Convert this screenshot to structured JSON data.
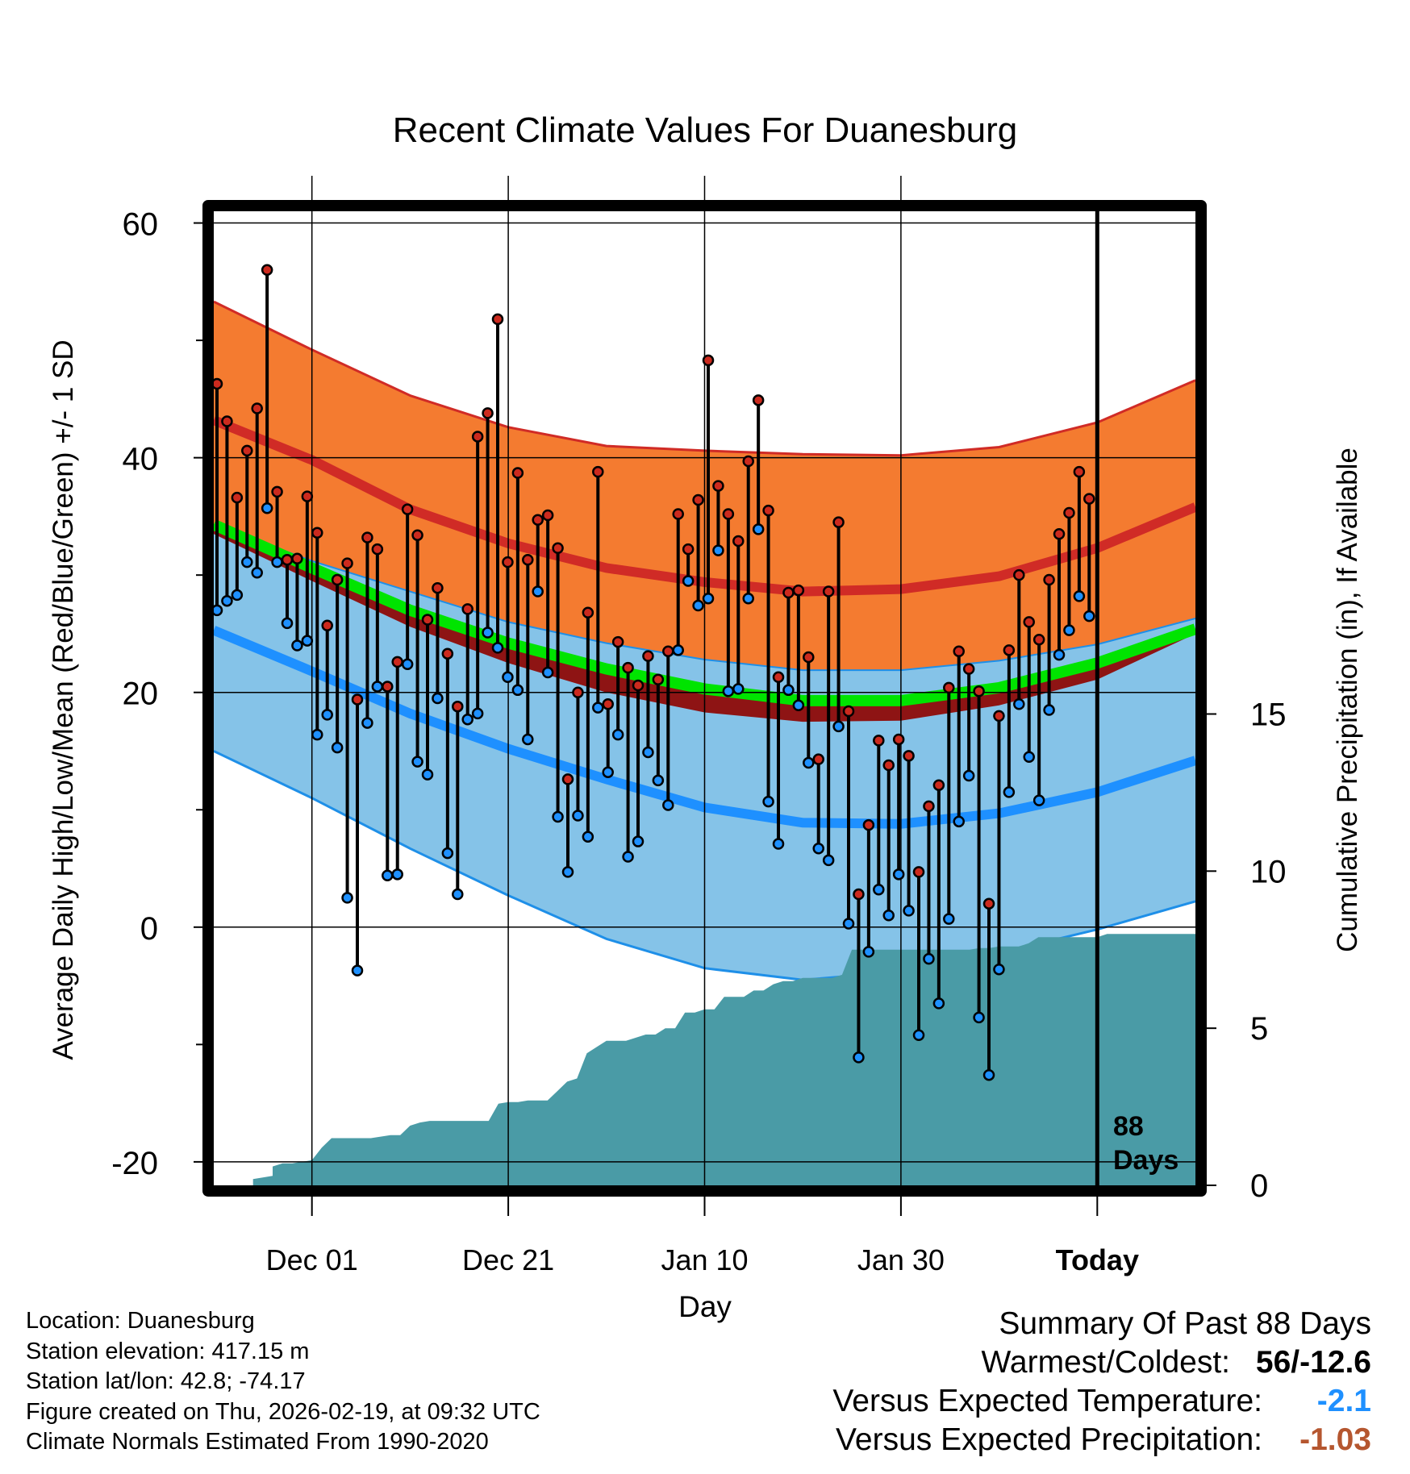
{
  "chart_data": {
    "type": "line",
    "title": "Recent Climate Values For Duanesburg",
    "xlabel": "Day",
    "ylabel": "Average Daily High/Low/Mean (Red/Blue/Green) +/- 1 SD",
    "y2label": "Cumulative Precipitation (in), If Available",
    "ylim": [
      -22,
      61
    ],
    "y_ticks": [
      -20,
      0,
      20,
      40,
      60
    ],
    "y_tick_labels": [
      "-20",
      "0",
      "20",
      "40",
      "60"
    ],
    "y2lim": [
      0,
      31
    ],
    "y2_ticks": [
      0,
      5,
      10,
      15
    ],
    "y2_tick_labels": [
      "0",
      "5",
      "10",
      "15"
    ],
    "xlim": [
      0,
      100
    ],
    "x_ticks": [
      10,
      30,
      50,
      70,
      90
    ],
    "x_tick_labels": [
      "Dec 01",
      "Dec 21",
      "Jan 10",
      "Jan 30",
      "Today"
    ],
    "today_index": 90,
    "days_label": [
      "88",
      "Days"
    ],
    "normals": {
      "x": [
        0,
        10,
        20,
        30,
        40,
        50,
        60,
        70,
        80,
        90,
        100
      ],
      "high_plus_sd": [
        53.3,
        49.2,
        45.3,
        42.6,
        41.0,
        40.6,
        40.3,
        40.2,
        40.9,
        43.0,
        46.6
      ],
      "high_mean": [
        43.2,
        39.8,
        35.6,
        32.7,
        30.6,
        29.4,
        28.6,
        28.8,
        29.9,
        32.3,
        35.8
      ],
      "high_minus_sd": [
        33.5,
        29.5,
        25.6,
        22.5,
        20.0,
        18.3,
        17.5,
        17.6,
        18.9,
        21.1,
        25.0
      ],
      "mean": [
        34.3,
        30.6,
        27.0,
        24.2,
        22.0,
        20.3,
        19.3,
        19.3,
        20.4,
        22.5,
        25.4
      ],
      "mean_sd_upper": [
        34.3,
        31.2,
        28.6,
        26.0,
        24.2,
        22.8,
        21.9,
        21.9,
        22.7,
        24.1,
        26.3
      ],
      "low_mean": [
        25.3,
        21.8,
        18.2,
        15.2,
        12.6,
        10.2,
        8.9,
        8.8,
        9.7,
        11.5,
        14.2
      ],
      "low_minus_sd": [
        15.0,
        11.0,
        6.7,
        2.7,
        -1.0,
        -3.5,
        -4.5,
        -3.8,
        -2.2,
        -0.2,
        2.2
      ]
    },
    "series": [
      {
        "name": "High",
        "color": "#cc2a1e",
        "values": [
          46.3,
          43.1,
          36.6,
          40.6,
          44.2,
          56.0,
          37.1,
          31.3,
          31.4,
          36.7,
          33.6,
          25.7,
          29.6,
          31.0,
          19.4,
          33.2,
          32.2,
          20.5,
          22.6,
          35.6,
          33.4,
          26.2,
          28.9,
          23.3,
          18.8,
          27.1,
          41.8,
          43.8,
          51.8,
          31.1,
          38.7,
          31.3,
          34.7,
          35.1,
          32.3,
          12.6,
          20.0,
          26.8,
          38.8,
          19.0,
          24.3,
          22.1,
          20.6,
          23.1,
          21.1,
          23.5,
          35.2,
          32.2,
          36.4,
          48.3,
          37.6,
          35.2,
          32.9,
          39.7,
          44.9,
          35.5,
          21.3,
          28.5,
          28.7,
          23.0,
          14.3,
          28.6,
          34.5,
          18.4,
          2.8,
          8.7,
          15.9,
          13.8,
          16.0,
          14.6,
          4.7,
          10.3,
          12.1,
          20.4,
          23.5,
          22.0,
          20.1,
          2.0,
          18.0,
          23.6,
          30.0,
          26.0,
          24.5,
          29.6,
          33.5,
          35.3,
          38.8,
          36.5
        ]
      },
      {
        "name": "Low",
        "color": "#1e90ff",
        "values": [
          27.0,
          27.8,
          28.3,
          31.1,
          30.2,
          35.7,
          31.1,
          25.9,
          24.0,
          24.4,
          16.4,
          18.1,
          15.3,
          2.5,
          -3.7,
          17.4,
          20.5,
          4.4,
          4.5,
          22.4,
          14.1,
          13.0,
          19.5,
          6.3,
          2.8,
          17.7,
          18.2,
          25.1,
          23.8,
          21.3,
          20.2,
          16.0,
          28.6,
          21.7,
          9.4,
          4.7,
          9.5,
          7.7,
          18.7,
          13.2,
          16.4,
          6.0,
          7.3,
          14.9,
          12.5,
          10.4,
          23.6,
          29.5,
          27.4,
          28.0,
          32.1,
          20.1,
          20.3,
          28.0,
          33.9,
          10.7,
          7.1,
          20.2,
          18.9,
          14.0,
          6.7,
          5.7,
          17.1,
          0.3,
          -11.1,
          -2.1,
          3.2,
          1.0,
          4.5,
          1.4,
          -9.2,
          -2.7,
          -6.5,
          0.7,
          9.0,
          12.9,
          -7.7,
          -12.6,
          -3.6,
          11.5,
          19.0,
          14.5,
          10.8,
          18.5,
          23.2,
          25.3,
          28.2,
          26.5
        ]
      }
    ],
    "precip": {
      "x": [
        0,
        4,
        4,
        5,
        6,
        6,
        7,
        8,
        8,
        9,
        10,
        10,
        11,
        12,
        13,
        14,
        15,
        16,
        17,
        18,
        19,
        20,
        21,
        22,
        23,
        24,
        25,
        26,
        27,
        28,
        29,
        30,
        31,
        32,
        33,
        34,
        35,
        36,
        37,
        38,
        39,
        40,
        41,
        42,
        43,
        44,
        45,
        46,
        47,
        48,
        49,
        50,
        51,
        52,
        53,
        54,
        55,
        56,
        57,
        58,
        59,
        60,
        61,
        62,
        63,
        64,
        65,
        66,
        67,
        68,
        69,
        70,
        71,
        72,
        73,
        74,
        75,
        76,
        77,
        78,
        79,
        80,
        81,
        82,
        83,
        84,
        85,
        86,
        87,
        88,
        89,
        90,
        91,
        92,
        93,
        94,
        95,
        96,
        97,
        98,
        99,
        100
      ],
      "y": [
        0,
        0,
        0.2,
        0.25,
        0.3,
        0.6,
        0.7,
        0.7,
        0.7,
        0.75,
        0.8,
        0.8,
        1.2,
        1.5,
        1.5,
        1.5,
        1.5,
        1.5,
        1.55,
        1.6,
        1.6,
        1.9,
        2.0,
        2.05,
        2.05,
        2.05,
        2.05,
        2.05,
        2.05,
        2.05,
        2.6,
        2.65,
        2.65,
        2.7,
        2.7,
        2.7,
        3.0,
        3.3,
        3.4,
        4.2,
        4.4,
        4.6,
        4.6,
        4.6,
        4.7,
        4.8,
        4.8,
        5.0,
        5.0,
        5.5,
        5.5,
        5.6,
        5.6,
        6.0,
        6.0,
        6.0,
        6.2,
        6.2,
        6.4,
        6.5,
        6.5,
        6.6,
        6.6,
        6.6,
        6.6,
        6.7,
        7.5,
        7.5,
        7.5,
        7.5,
        7.5,
        7.5,
        7.5,
        7.5,
        7.5,
        7.5,
        7.5,
        7.5,
        7.5,
        7.55,
        7.55,
        7.6,
        7.6,
        7.6,
        7.7,
        7.9,
        7.9,
        7.9,
        7.9,
        7.9,
        7.9,
        7.9,
        8.0,
        8.0,
        8.0,
        8.0,
        8.0,
        8.0,
        8.0,
        8.0,
        8.0,
        8.0
      ]
    },
    "colors": {
      "high_band": "#f47b30",
      "high_line": "#d02b26",
      "mean_band": "#8e1414",
      "mean_line": "#00e400",
      "low_band": "#85c3e8",
      "low_line": "#1e90ff",
      "low_edge": "#1e8fe8",
      "precip_fill": "#4a9ba6",
      "high_dot": "#cc2a1e",
      "low_dot": "#1e90ff"
    }
  },
  "footer": {
    "lines": [
      "Location: Duanesburg",
      "Station elevation: 417.15 m",
      "Station lat/lon: 42.8; -74.17",
      "Figure created on Thu, 2026-02-19, at 09:32 UTC",
      "Climate Normals Estimated From 1990-2020"
    ]
  },
  "summary": {
    "title": "Summary Of Past 88 Days",
    "warmest_coldest_label": "Warmest/Coldest:",
    "warmest_coldest_value": "56/-12.6",
    "temp_label": "Versus Expected Temperature:",
    "temp_value": "-2.1",
    "temp_color": "#1e90ff",
    "precip_label": "Versus Expected Precipitation:",
    "precip_value": "-1.03",
    "precip_color": "#b5562f"
  }
}
